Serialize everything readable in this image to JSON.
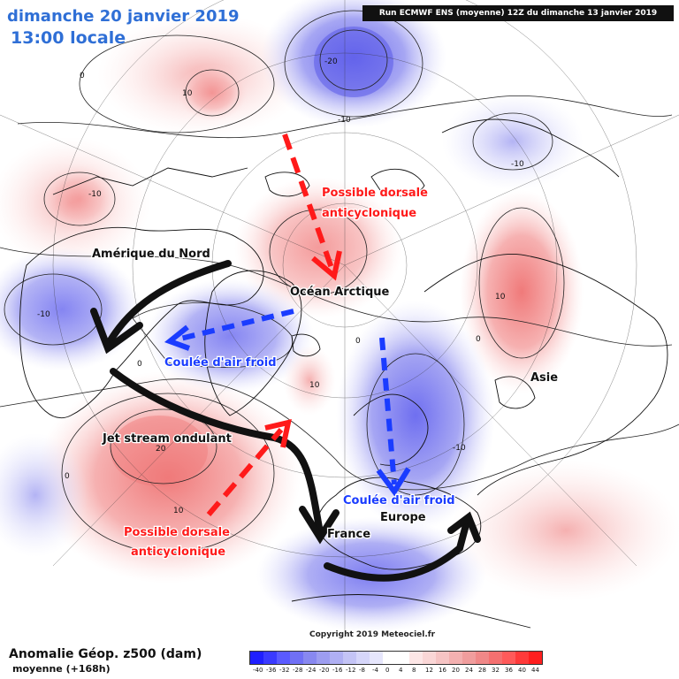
{
  "header": {
    "date": "dimanche 20 janvier 2019",
    "time": "13:00 locale",
    "run": "Run ECMWF ENS (moyenne) 12Z du dimanche 13 janvier 2019"
  },
  "annotations": {
    "amerique": "Amérique du Nord",
    "ocean": "Océan Arctique",
    "asie": "Asie",
    "europe": "Europe",
    "france": "France",
    "jet": "Jet stream ondulant",
    "coulee_1": "Coulée d'air froid",
    "coulee_2": "Coulée d'air froid",
    "dorsale_1a": "Possible dorsale",
    "dorsale_1b": "anticyclonique",
    "dorsale_2a": "Possible dorsale",
    "dorsale_2b": "anticyclonique"
  },
  "contour_labels": {
    "l_20": "-20",
    "l_m10a": "-10",
    "l_m10b": "-10",
    "l_m10c": "-10",
    "l_m10d": "-10",
    "l_m10e": "-10",
    "l_10a": "10",
    "l_10b": "10",
    "l_10c": "10",
    "l_10d": "10",
    "l_20b": "20",
    "l_0a": "0",
    "l_0b": "0",
    "l_0c": "0",
    "l_0d": "0",
    "l_0e": "0"
  },
  "footer": {
    "title": "Anomalie Géop. z500 (dam)",
    "subtitle": "moyenne   (+168h)",
    "copyright": "Copyright 2019 Meteociel.fr"
  },
  "legend": {
    "colors": [
      "#1f1fff",
      "#3a3aff",
      "#5a5aff",
      "#7070f5",
      "#8888f0",
      "#9d9df0",
      "#b0b0f3",
      "#c4c4f6",
      "#d6d6fa",
      "#e6e6fc",
      "#ffffff",
      "#ffffff",
      "#fde6e6",
      "#fad6d6",
      "#f6c4c4",
      "#f3b0b0",
      "#f09d9d",
      "#f08888",
      "#f57070",
      "#ff5a5a",
      "#ff3a3a",
      "#ff1f1f"
    ],
    "labels": [
      "-40",
      "-36",
      "-32",
      "-28",
      "-24",
      "-20",
      "-16",
      "-12",
      "-8",
      "-4",
      "0",
      "4",
      "8",
      "12",
      "16",
      "20",
      "24",
      "28",
      "32",
      "36",
      "40",
      "44"
    ]
  },
  "colors": {
    "positive": "#f3a0a0",
    "negative": "#9a9af0",
    "arrow_black": "#111111",
    "arrow_red": "#ff1a1a",
    "arrow_blue": "#1a3cff"
  }
}
